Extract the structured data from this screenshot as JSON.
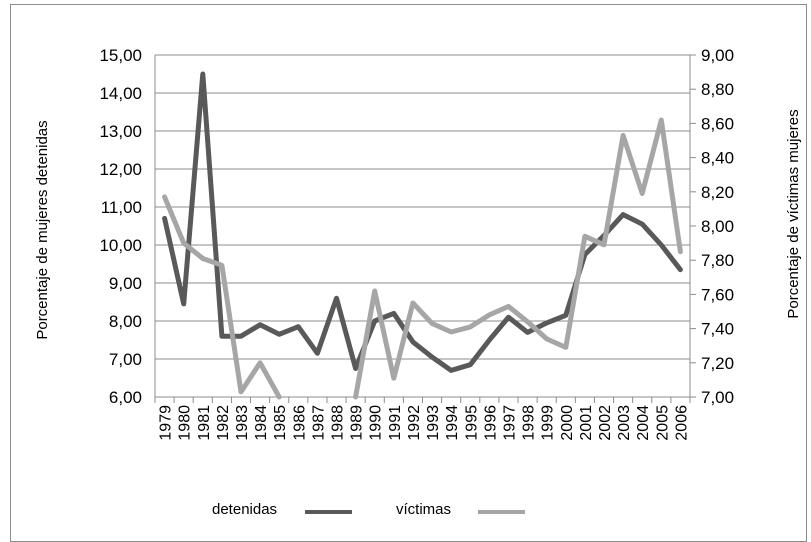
{
  "chart_data": {
    "type": "line",
    "x": [
      "1979",
      "1980",
      "1981",
      "1982",
      "1983",
      "1984",
      "1985",
      "1986",
      "1987",
      "1988",
      "1989",
      "1990",
      "1991",
      "1992",
      "1993",
      "1994",
      "1995",
      "1996",
      "1997",
      "1998",
      "1999",
      "2000",
      "2001",
      "2002",
      "2003",
      "2004",
      "2005",
      "2006"
    ],
    "series": [
      {
        "name": "detenidas",
        "axis": "left",
        "color": "#595959",
        "values": [
          10.7,
          8.45,
          14.5,
          7.6,
          7.6,
          7.9,
          7.65,
          7.85,
          7.15,
          8.6,
          6.75,
          8.0,
          8.2,
          7.45,
          7.05,
          6.7,
          6.85,
          7.5,
          8.1,
          7.7,
          7.95,
          8.15,
          9.75,
          10.25,
          10.8,
          10.55,
          10.0,
          9.35
        ]
      },
      {
        "name": "víctimas",
        "axis": "right",
        "color": "#a6a6a6",
        "values": [
          8.17,
          7.9,
          7.81,
          7.77,
          7.03,
          7.2,
          6.98,
          null,
          null,
          null,
          6.98,
          7.62,
          7.11,
          7.55,
          7.43,
          7.38,
          7.41,
          7.48,
          7.53,
          7.44,
          7.34,
          7.29,
          7.94,
          7.89,
          8.53,
          8.19,
          8.62,
          7.85
        ]
      }
    ],
    "y_left": {
      "label": "Porcentaje de mujeres detenidas",
      "ylim": [
        6,
        15
      ],
      "ticks": [
        "6,00",
        "7,00",
        "8,00",
        "9,00",
        "10,00",
        "11,00",
        "12,00",
        "13,00",
        "14,00",
        "15,00"
      ]
    },
    "y_right": {
      "label": "Porcentaje de víctimas mujeres",
      "ylim": [
        7,
        9
      ],
      "ticks": [
        "7,00",
        "7,20",
        "7,40",
        "7,60",
        "7,80",
        "8,00",
        "8,20",
        "8,40",
        "8,60",
        "8,80",
        "9,00"
      ]
    },
    "grid": true,
    "legend": {
      "position": "bottom",
      "entries": [
        "detenidas",
        "víctimas"
      ]
    }
  }
}
